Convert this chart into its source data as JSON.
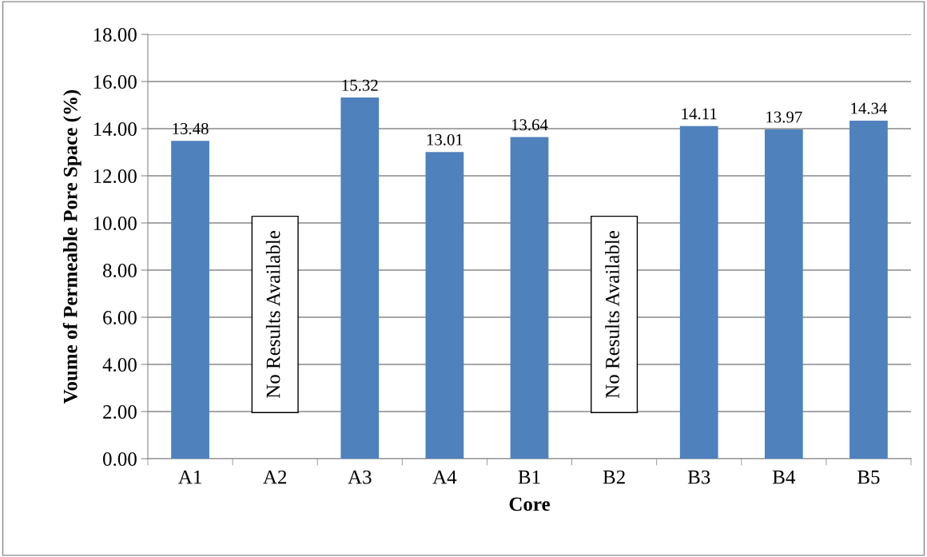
{
  "chart_data": {
    "type": "bar",
    "xlabel": "Core",
    "ylabel": "Voume of Permeable Pore Space (%)",
    "categories": [
      "A1",
      "A2",
      "A3",
      "A4",
      "B1",
      "B2",
      "B3",
      "B4",
      "B5"
    ],
    "values": [
      13.48,
      null,
      15.32,
      13.01,
      13.64,
      null,
      14.11,
      13.97,
      14.34
    ],
    "color": "#4f81bd",
    "value_labels": [
      "13.48",
      null,
      "15.32",
      "13.01",
      "13.64",
      null,
      "14.11",
      "13.97",
      "14.34"
    ],
    "annotations": [
      "No Results Available",
      "No Results Available"
    ],
    "ylim": [
      0,
      18
    ],
    "yticks": [
      {
        "value": 0,
        "label": "0.00"
      },
      {
        "value": 2,
        "label": "2.00"
      },
      {
        "value": 4,
        "label": "4.00"
      },
      {
        "value": 6,
        "label": "6.00"
      },
      {
        "value": 8,
        "label": "8.00"
      },
      {
        "value": 10,
        "label": "10.00"
      },
      {
        "value": 12,
        "label": "12.00"
      },
      {
        "value": 14,
        "label": "14.00"
      },
      {
        "value": 16,
        "label": "16.00"
      },
      {
        "value": 18,
        "label": "18.00"
      }
    ],
    "grid": "y",
    "legend": false
  }
}
